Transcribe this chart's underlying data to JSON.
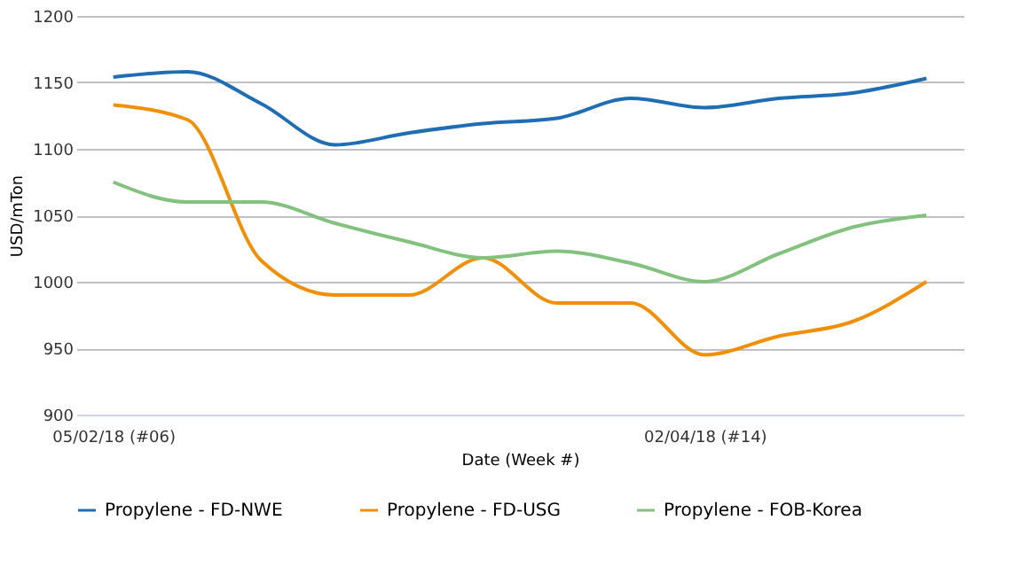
{
  "chart_data": {
    "type": "line",
    "xlabel": "Date (Week #)",
    "ylabel": "USD/mTon",
    "categories": [
      "05/02/18 (#06)",
      null,
      null,
      null,
      null,
      null,
      null,
      null,
      "02/04/18 (#14)",
      null,
      null,
      null
    ],
    "series": [
      {
        "name": "Propylene - FD-NWE",
        "color": "#1f6db3",
        "values": [
          1154,
          1158,
          1134,
          1103,
          1112,
          1119,
          1123,
          1138,
          1131,
          1138,
          1142,
          1153
        ]
      },
      {
        "name": "Propylene - FD-USG",
        "color": "#f0900a",
        "values": [
          1133,
          1122,
          1016,
          990,
          990,
          1018,
          984,
          984,
          945,
          959,
          970,
          1000
        ]
      },
      {
        "name": "Propylene - FOB-Korea",
        "color": "#82c17e",
        "values": [
          1075,
          1060,
          1060,
          1044,
          1030,
          1018,
          1023,
          1014,
          1000,
          1021,
          1041,
          1050
        ]
      }
    ],
    "ylim": [
      900,
      1200
    ],
    "yticks": [
      900,
      950,
      1000,
      1050,
      1100,
      1150,
      1200
    ],
    "grid": "y",
    "legend": "bottom",
    "marker": "none",
    "line_style": "solid"
  }
}
